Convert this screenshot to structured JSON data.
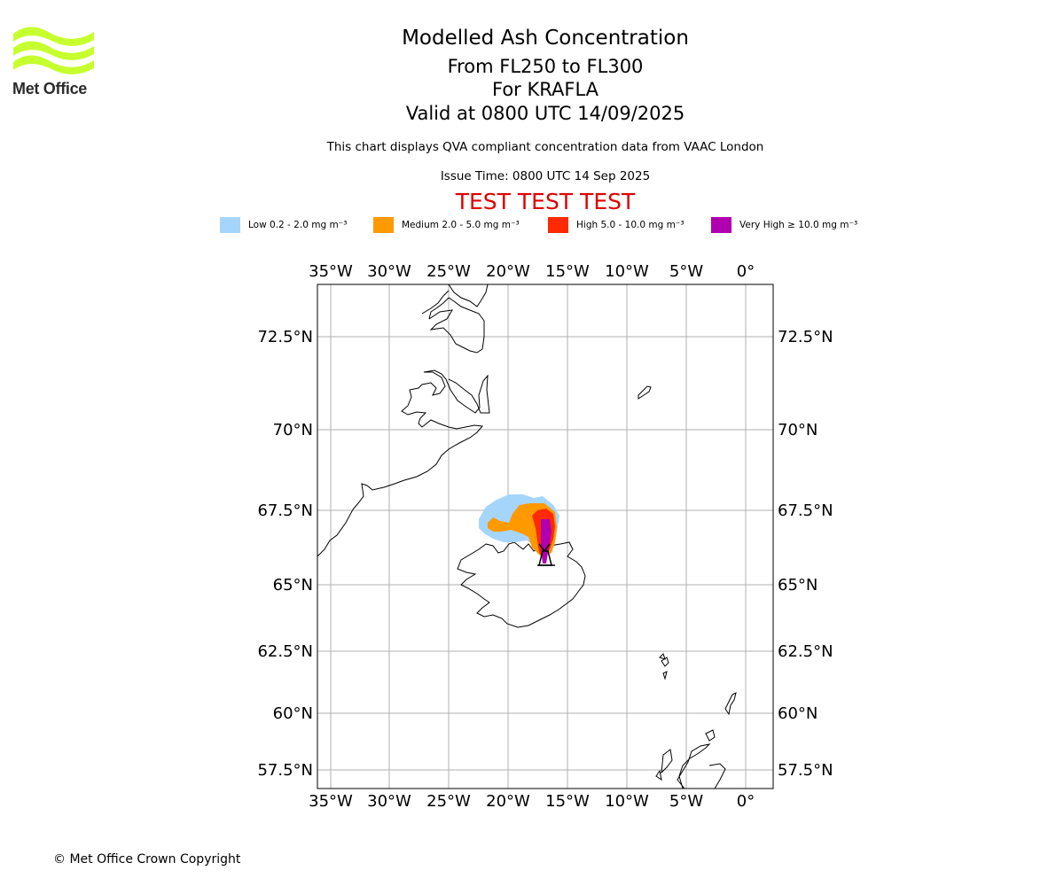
{
  "logo": {
    "name": "Met Office",
    "icon": "met-office-wave-logo",
    "color": "#c6ff2e"
  },
  "title": {
    "line1": "Modelled Ash Concentration",
    "line2": "From FL250 to FL300",
    "line3": "For KRAFLA",
    "line4": "Valid at 0800 UTC 14/09/2025"
  },
  "subtitle": {
    "description": "This chart displays QVA compliant concentration data from VAAC London",
    "issue_time": "Issue Time: 0800 UTC 14 Sep 2025"
  },
  "test_banner": "TEST TEST TEST",
  "legend": [
    {
      "label": "Low 0.2 - 2.0 mg m⁻³",
      "color": "#a6d5fb"
    },
    {
      "label": "Medium 2.0 - 5.0 mg m⁻³",
      "color": "#ff9900"
    },
    {
      "label": "High 5.0 - 10.0 mg m⁻³",
      "color": "#ff2a00"
    },
    {
      "label": "Very High ≥ 10.0 mg m⁻³",
      "color": "#b000b0"
    }
  ],
  "map": {
    "lon_labels": [
      "35°W",
      "30°W",
      "25°W",
      "20°W",
      "15°W",
      "10°W",
      "5°W",
      "0°"
    ],
    "lat_labels": [
      "72.5°N",
      "70°N",
      "67.5°N",
      "65°N",
      "62.5°N",
      "60°N",
      "57.5°N"
    ],
    "grid": true,
    "volcano": "KRAFLA"
  },
  "copyright": "© Met Office Crown Copyright"
}
